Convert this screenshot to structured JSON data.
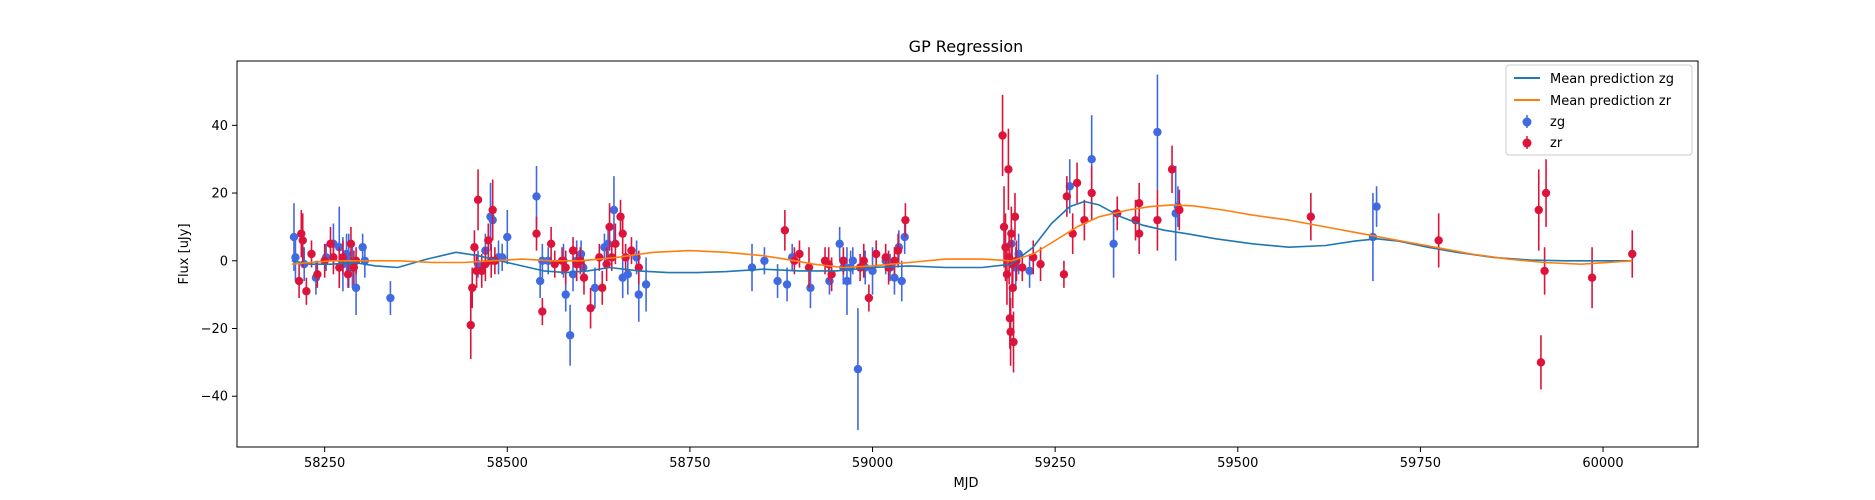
{
  "chart_data": {
    "type": "scatter",
    "title": "GP Regression",
    "xlabel": "MJD",
    "ylabel": "Flux [uJy]",
    "xlim": [
      58130,
      60130
    ],
    "ylim": [
      -55,
      59
    ],
    "xticks": [
      58250,
      58500,
      58750,
      59000,
      59250,
      59500,
      59750,
      60000
    ],
    "yticks": [
      -40,
      -20,
      0,
      20,
      40
    ],
    "legend": {
      "position": "top-right"
    },
    "lines": [
      {
        "name": "Mean prediction zg",
        "color": "#1f77b4",
        "x": [
          58205,
          58230,
          58260,
          58290,
          58320,
          58350,
          58390,
          58430,
          58460,
          58490,
          58520,
          58550,
          58580,
          58610,
          58640,
          58680,
          58720,
          58760,
          58800,
          58850,
          58900,
          58950,
          59000,
          59050,
          59100,
          59150,
          59190,
          59220,
          59245,
          59270,
          59290,
          59310,
          59340,
          59370,
          59400,
          59430,
          59470,
          59520,
          59570,
          59620,
          59660,
          59690,
          59720,
          59760,
          59800,
          59850,
          59900,
          59950,
          60000,
          60040
        ],
        "y": [
          0,
          -1,
          -1,
          -0.5,
          -1.5,
          -2,
          0.5,
          2.5,
          1.5,
          0,
          -1.5,
          -3,
          -3.5,
          -3,
          -2,
          -3,
          -3.5,
          -3.5,
          -3.2,
          -2.5,
          -3,
          -3,
          -2,
          -1.5,
          -2,
          -2,
          -1,
          4,
          11,
          16,
          17.5,
          16.5,
          13,
          10.5,
          9,
          8,
          6.5,
          5,
          4,
          4.5,
          5.8,
          6.5,
          5.8,
          4,
          2.5,
          1,
          0.2,
          0,
          0,
          0
        ]
      },
      {
        "name": "Mean prediction zr",
        "color": "#ff7f0e",
        "x": [
          58205,
          58230,
          58260,
          58300,
          58350,
          58400,
          58440,
          58480,
          58520,
          58560,
          58600,
          58650,
          58700,
          58750,
          58800,
          58850,
          58880,
          58920,
          58960,
          59000,
          59050,
          59100,
          59150,
          59190,
          59220,
          59250,
          59280,
          59310,
          59350,
          59380,
          59410,
          59440,
          59480,
          59520,
          59570,
          59620,
          59670,
          59720,
          59770,
          59820,
          59870,
          59920,
          59970,
          60040
        ],
        "y": [
          -1,
          -0.5,
          0,
          0,
          0,
          -0.5,
          -0.5,
          0,
          0.5,
          0,
          0,
          1,
          2.5,
          3,
          2.5,
          1.5,
          0.5,
          -1,
          -2,
          -1.5,
          -0.5,
          0.5,
          0.5,
          0,
          2,
          6,
          10,
          13,
          15,
          16,
          16.5,
          16.2,
          15,
          13.5,
          12,
          10,
          8,
          6,
          4,
          2,
          0.5,
          -0.5,
          -1,
          0
        ]
      }
    ],
    "series": [
      {
        "name": "zg",
        "color": "#4169e1",
        "points": [
          [
            58208,
            7,
            10
          ],
          [
            58210,
            1,
            7
          ],
          [
            58222,
            -1,
            5
          ],
          [
            58238,
            -5,
            5
          ],
          [
            58252,
            1,
            4
          ],
          [
            58262,
            5,
            6
          ],
          [
            58270,
            4,
            12
          ],
          [
            58275,
            -1,
            8
          ],
          [
            58280,
            2,
            6
          ],
          [
            58283,
            0,
            8
          ],
          [
            58288,
            -2,
            6
          ],
          [
            58293,
            -8,
            8
          ],
          [
            58302,
            4,
            4
          ],
          [
            58305,
            0,
            5
          ],
          [
            58340,
            -11,
            5
          ],
          [
            58460,
            -1,
            4
          ],
          [
            58470,
            3,
            5
          ],
          [
            58477,
            13,
            10
          ],
          [
            58480,
            12,
            6
          ],
          [
            58488,
            1,
            5
          ],
          [
            58493,
            1,
            4
          ],
          [
            58500,
            7,
            8
          ],
          [
            58540,
            19,
            9
          ],
          [
            58545,
            -6,
            5
          ],
          [
            58548,
            0,
            5
          ],
          [
            58556,
            0,
            4
          ],
          [
            58577,
            0,
            5
          ],
          [
            58580,
            -10,
            5
          ],
          [
            58586,
            -22,
            9
          ],
          [
            58590,
            -4,
            5
          ],
          [
            58595,
            0,
            6
          ],
          [
            58601,
            2,
            4
          ],
          [
            58604,
            -2,
            4
          ],
          [
            58620,
            -8,
            6
          ],
          [
            58633,
            4,
            4
          ],
          [
            58638,
            5,
            6
          ],
          [
            58646,
            15,
            10
          ],
          [
            58658,
            -5,
            6
          ],
          [
            58665,
            -4,
            6
          ],
          [
            58677,
            1,
            5
          ],
          [
            58680,
            -10,
            8
          ],
          [
            58690,
            -7,
            8
          ],
          [
            58835,
            -2,
            7
          ],
          [
            58852,
            0,
            4
          ],
          [
            58870,
            -6,
            5
          ],
          [
            58883,
            -7,
            5
          ],
          [
            58890,
            1,
            4
          ],
          [
            58915,
            -8,
            6
          ],
          [
            58941,
            -6,
            4
          ],
          [
            58955,
            5,
            5
          ],
          [
            58960,
            -2,
            5
          ],
          [
            58965,
            -6,
            10
          ],
          [
            58970,
            -2,
            5
          ],
          [
            58973,
            0,
            4
          ],
          [
            58980,
            -32,
            18
          ],
          [
            58990,
            -2,
            5
          ],
          [
            59000,
            -3,
            7
          ],
          [
            59018,
            0,
            4
          ],
          [
            59024,
            -2,
            4
          ],
          [
            59030,
            -5,
            5
          ],
          [
            59036,
            4,
            5
          ],
          [
            59040,
            -6,
            6
          ],
          [
            59044,
            7,
            5
          ],
          [
            59190,
            5,
            5
          ],
          [
            59196,
            -2,
            6
          ],
          [
            59200,
            2,
            6
          ],
          [
            59215,
            -3,
            5
          ],
          [
            59270,
            22,
            8
          ],
          [
            59300,
            30,
            13
          ],
          [
            59330,
            5,
            10
          ],
          [
            59390,
            38,
            17
          ],
          [
            59415,
            14,
            14
          ],
          [
            59418,
            16,
            6
          ],
          [
            59685,
            7,
            13
          ],
          [
            59690,
            16,
            6
          ]
        ]
      },
      {
        "name": "zr",
        "color": "#dc143c",
        "points": [
          [
            58215,
            -6,
            5
          ],
          [
            58218,
            8,
            7
          ],
          [
            58220,
            6,
            8
          ],
          [
            58225,
            -9,
            4
          ],
          [
            58232,
            2,
            4
          ],
          [
            58240,
            -4,
            4
          ],
          [
            58250,
            0,
            5
          ],
          [
            58258,
            5,
            5
          ],
          [
            58262,
            1,
            5
          ],
          [
            58270,
            -2,
            6
          ],
          [
            58275,
            1,
            5
          ],
          [
            58282,
            -4,
            4
          ],
          [
            58286,
            5,
            5
          ],
          [
            58290,
            -2,
            5
          ],
          [
            58293,
            0,
            4
          ],
          [
            58450,
            -19,
            10
          ],
          [
            58452,
            -8,
            6
          ],
          [
            58455,
            4,
            5
          ],
          [
            58458,
            -3,
            5
          ],
          [
            58460,
            18,
            9
          ],
          [
            58465,
            -3,
            5
          ],
          [
            58470,
            -1,
            5
          ],
          [
            58474,
            6,
            5
          ],
          [
            58478,
            0,
            5
          ],
          [
            58480,
            15,
            9
          ],
          [
            58483,
            0,
            4
          ],
          [
            58540,
            8,
            5
          ],
          [
            58548,
            -15,
            4
          ],
          [
            58560,
            5,
            5
          ],
          [
            58565,
            -1,
            4
          ],
          [
            58575,
            0,
            4
          ],
          [
            58580,
            -2,
            5
          ],
          [
            58590,
            3,
            4
          ],
          [
            58595,
            -1,
            5
          ],
          [
            58600,
            0,
            4
          ],
          [
            58605,
            -5,
            5
          ],
          [
            58614,
            -14,
            6
          ],
          [
            58626,
            1,
            4
          ],
          [
            58630,
            -8,
            5
          ],
          [
            58636,
            -1,
            5
          ],
          [
            58640,
            10,
            7
          ],
          [
            58643,
            1,
            4
          ],
          [
            58648,
            5,
            6
          ],
          [
            58655,
            13,
            5
          ],
          [
            58658,
            8,
            6
          ],
          [
            58662,
            1,
            4
          ],
          [
            58670,
            3,
            4
          ],
          [
            58680,
            -2,
            5
          ],
          [
            58880,
            9,
            6
          ],
          [
            58893,
            0,
            4
          ],
          [
            58900,
            2,
            4
          ],
          [
            58913,
            -2,
            6
          ],
          [
            58935,
            0,
            4
          ],
          [
            58940,
            -1,
            5
          ],
          [
            58944,
            -4,
            5
          ],
          [
            58960,
            0,
            4
          ],
          [
            58983,
            -2,
            4
          ],
          [
            58988,
            0,
            5
          ],
          [
            58995,
            -11,
            4
          ],
          [
            59005,
            2,
            4
          ],
          [
            59018,
            1,
            4
          ],
          [
            59022,
            -2,
            5
          ],
          [
            59030,
            0,
            4
          ],
          [
            59035,
            3,
            5
          ],
          [
            59045,
            12,
            5
          ],
          [
            59178,
            37,
            12
          ],
          [
            59180,
            10,
            12
          ],
          [
            59182,
            4,
            10
          ],
          [
            59184,
            -4,
            9
          ],
          [
            59186,
            27,
            12
          ],
          [
            59187,
            1,
            8
          ],
          [
            59188,
            -17,
            9
          ],
          [
            59189,
            -21,
            10
          ],
          [
            59190,
            8,
            8
          ],
          [
            59191,
            -1,
            7
          ],
          [
            59192,
            -8,
            6
          ],
          [
            59193,
            -24,
            9
          ],
          [
            59195,
            13,
            7
          ],
          [
            59197,
            0,
            6
          ],
          [
            59205,
            -2,
            4
          ],
          [
            59220,
            1,
            5
          ],
          [
            59230,
            -1,
            5
          ],
          [
            59262,
            -4,
            4
          ],
          [
            59266,
            19,
            6
          ],
          [
            59274,
            8,
            6
          ],
          [
            59280,
            23,
            6
          ],
          [
            59290,
            12,
            6
          ],
          [
            59300,
            20,
            8
          ],
          [
            59335,
            14,
            5
          ],
          [
            59360,
            12,
            6
          ],
          [
            59365,
            8,
            6
          ],
          [
            59365,
            17,
            6
          ],
          [
            59390,
            12,
            9
          ],
          [
            59410,
            27,
            7
          ],
          [
            59420,
            15,
            6
          ],
          [
            59600,
            13,
            7
          ],
          [
            59775,
            6,
            8
          ],
          [
            59912,
            15,
            12
          ],
          [
            59915,
            -30,
            8
          ],
          [
            59920,
            -3,
            7
          ],
          [
            59922,
            20,
            10
          ],
          [
            59985,
            -5,
            9
          ],
          [
            60040,
            2,
            7
          ]
        ]
      }
    ]
  }
}
